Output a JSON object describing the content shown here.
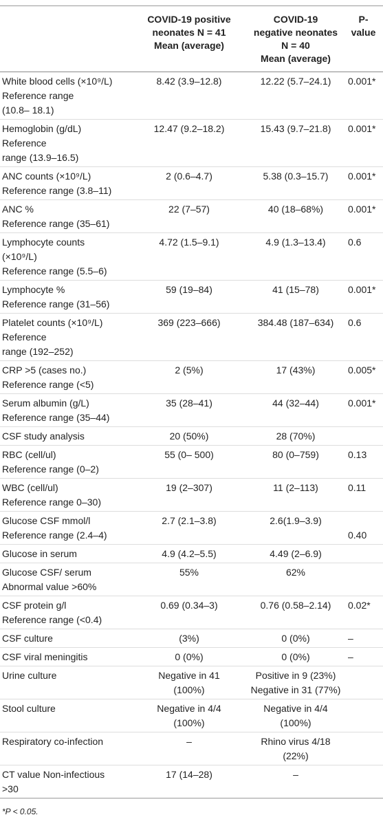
{
  "table": {
    "header": [
      [],
      [
        "COVID-19 positive",
        "neonates N = 41",
        "Mean (average)"
      ],
      [
        "COVID-19",
        "negative neonates",
        "N = 40",
        "Mean (average)"
      ],
      [
        "P-value"
      ]
    ],
    "rows": [
      {
        "cells": [
          [
            "White blood cells (×10⁹/L)",
            "Reference range",
            "(10.8– 18.1)"
          ],
          [
            "8.42 (3.9–12.8)"
          ],
          [
            "12.22 (5.7–24.1)"
          ],
          [
            "0.001*"
          ]
        ]
      },
      {
        "cells": [
          [
            "Hemoglobin (g/dL)",
            "Reference",
            "range (13.9–16.5)"
          ],
          [
            "12.47 (9.2–18.2)"
          ],
          [
            "15.43 (9.7–21.8)"
          ],
          [
            "0.001*"
          ]
        ]
      },
      {
        "cells": [
          [
            "ANC counts (×10⁹/L)",
            "Reference range (3.8–11)"
          ],
          [
            "2 (0.6–4.7)"
          ],
          [
            "5.38 (0.3–15.7)"
          ],
          [
            "0.001*"
          ]
        ]
      },
      {
        "cells": [
          [
            "ANC %",
            "Reference range (35–61)"
          ],
          [
            "22 (7–57)"
          ],
          [
            "40 (18–68%)"
          ],
          [
            "0.001*"
          ]
        ]
      },
      {
        "cells": [
          [
            "Lymphocyte counts",
            "(×10⁹/L)",
            "Reference range (5.5–6)"
          ],
          [
            "4.72 (1.5–9.1)"
          ],
          [
            "4.9 (1.3–13.4)"
          ],
          [
            "0.6"
          ]
        ]
      },
      {
        "cells": [
          [
            "Lymphocyte %",
            "Reference range (31–56)"
          ],
          [
            "59 (19–84)"
          ],
          [
            "41 (15–78)"
          ],
          [
            "0.001*"
          ]
        ]
      },
      {
        "cells": [
          [
            "Platelet counts (×10⁹/L)",
            "Reference",
            "range (192–252)"
          ],
          [
            "369 (223–666)"
          ],
          [
            "384.48 (187–634)"
          ],
          [
            "0.6"
          ]
        ]
      },
      {
        "cells": [
          [
            "CRP >5 (cases no.)",
            "Reference range (<5)"
          ],
          [
            "2 (5%)"
          ],
          [
            "17 (43%)"
          ],
          [
            "0.005*"
          ]
        ]
      },
      {
        "cells": [
          [
            "Serum albumin (g/L)",
            "Reference range (35–44)"
          ],
          [
            "35 (28–41)"
          ],
          [
            "44 (32–44)"
          ],
          [
            "0.001*"
          ]
        ]
      },
      {
        "cells": [
          [
            "CSF study analysis"
          ],
          [
            "20 (50%)"
          ],
          [
            "28 (70%)"
          ],
          []
        ]
      },
      {
        "cells": [
          [
            "RBC (cell/ul)",
            "Reference range (0–2)"
          ],
          [
            "55 (0– 500)"
          ],
          [
            "80 (0–759)"
          ],
          [
            "0.13"
          ]
        ]
      },
      {
        "cells": [
          [
            "WBC (cell/ul)",
            "Reference range 0–30)"
          ],
          [
            "19 (2–307)"
          ],
          [
            "11 (2–113)"
          ],
          [
            "0.11"
          ]
        ]
      },
      {
        "cells": [
          [
            "Glucose CSF mmol/l",
            "Reference range (2.4–4)"
          ],
          [
            "2.7 (2.1–3.8)"
          ],
          [
            "2.6(1.9–3.9)"
          ],
          [
            "0.40"
          ]
        ]
      },
      {
        "cells": [
          [
            "Glucose in serum"
          ],
          [
            "4.9 (4.2–5.5)"
          ],
          [
            "4.49 (2–6.9)"
          ],
          []
        ]
      },
      {
        "cells": [
          [
            "Glucose CSF/ serum",
            "Abnormal value >60%"
          ],
          [
            "55%"
          ],
          [
            "62%"
          ],
          []
        ]
      },
      {
        "cells": [
          [
            "CSF protein g/l",
            "Reference range (<0.4)"
          ],
          [
            "0.69 (0.34–3)"
          ],
          [
            "0.76 (0.58–2.14)"
          ],
          [
            "0.02*"
          ]
        ]
      },
      {
        "cells": [
          [
            "CSF culture"
          ],
          [
            "(3%)"
          ],
          [
            "0 (0%)"
          ],
          [
            "–"
          ]
        ]
      },
      {
        "cells": [
          [
            "CSF viral meningitis"
          ],
          [
            "0 (0%)"
          ],
          [
            "0 (0%)"
          ],
          [
            "–"
          ]
        ]
      },
      {
        "cells": [
          [
            "Urine culture"
          ],
          [
            "Negative in 41",
            "(100%)"
          ],
          [
            "Positive in 9 (23%)",
            "Negative in 31 (77%)"
          ],
          []
        ]
      },
      {
        "cells": [
          [
            "Stool culture"
          ],
          [
            "Negative in 4/4",
            "(100%)"
          ],
          [
            "Negative in 4/4",
            "(100%)"
          ],
          []
        ]
      },
      {
        "cells": [
          [
            "Respiratory co-infection"
          ],
          [
            "–"
          ],
          [
            "Rhino virus 4/18",
            "(22%)"
          ],
          []
        ]
      },
      {
        "cells": [
          [
            "CT value Non-infectious",
            ">30"
          ],
          [
            "17 (14–28)"
          ],
          [
            "–"
          ],
          []
        ]
      }
    ]
  },
  "footnote": "*P < 0.05."
}
